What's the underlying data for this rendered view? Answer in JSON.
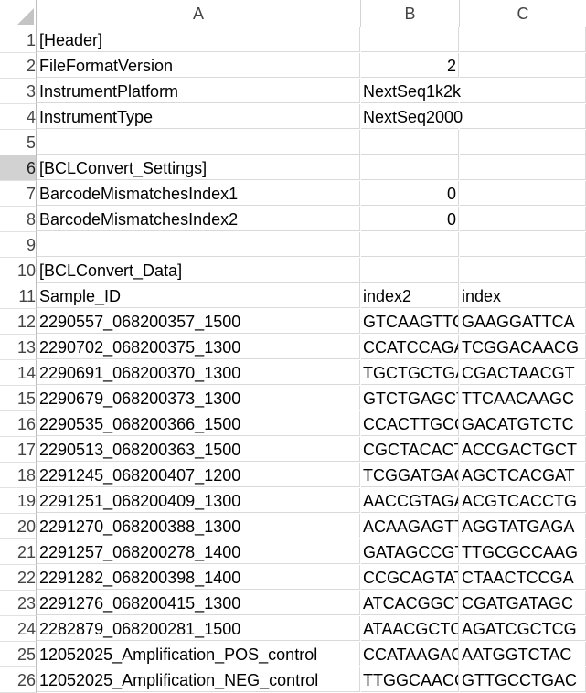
{
  "columns": [
    "A",
    "B",
    "C"
  ],
  "rows": [
    {
      "num": "1",
      "a": "[Header]",
      "b": "",
      "c": ""
    },
    {
      "num": "2",
      "a": "FileFormatVersion",
      "b": "2",
      "c": ""
    },
    {
      "num": "3",
      "a": "InstrumentPlatform",
      "b": "NextSeq1k2k",
      "c": ""
    },
    {
      "num": "4",
      "a": "InstrumentType",
      "b": "NextSeq2000",
      "c": ""
    },
    {
      "num": "5",
      "a": "",
      "b": "",
      "c": ""
    },
    {
      "num": "6",
      "a": "[BCLConvert_Settings]",
      "b": "",
      "c": ""
    },
    {
      "num": "7",
      "a": "BarcodeMismatchesIndex1",
      "b": "0",
      "c": ""
    },
    {
      "num": "8",
      "a": "BarcodeMismatchesIndex2",
      "b": "0",
      "c": ""
    },
    {
      "num": "9",
      "a": "",
      "b": "",
      "c": ""
    },
    {
      "num": "10",
      "a": "[BCLConvert_Data]",
      "b": "",
      "c": ""
    },
    {
      "num": "11",
      "a": "Sample_ID",
      "b": "index2",
      "c": "index"
    },
    {
      "num": "12",
      "a": "2290557_068200357_1500",
      "b": "GTCAAGTTCT",
      "c": "GAAGGATTCA"
    },
    {
      "num": "13",
      "a": "2290702_068200375_1300",
      "b": "CCATCCAGAT",
      "c": "TCGGACAACG"
    },
    {
      "num": "14",
      "a": "2290691_068200370_1300",
      "b": "TGCTGCTGAC",
      "c": "CGACTAACGT"
    },
    {
      "num": "15",
      "a": "2290679_068200373_1300",
      "b": "GTCTGAGCTT",
      "c": "TTCAACAAGC"
    },
    {
      "num": "16",
      "a": "2290535_068200366_1500",
      "b": "CCACTTGCCG",
      "c": "GACATGTCTC"
    },
    {
      "num": "17",
      "a": "2290513_068200363_1500",
      "b": "CGCTACACTA",
      "c": "ACCGACTGCT"
    },
    {
      "num": "18",
      "a": "2291245_068200407_1200",
      "b": "TCGGATGAGA",
      "c": "AGCTCACGAT"
    },
    {
      "num": "19",
      "a": "2291251_068200409_1300",
      "b": "AACCGTAGAC",
      "c": "ACGTCACCTG"
    },
    {
      "num": "20",
      "a": "2291270_068200388_1300",
      "b": "ACAAGAGTTA",
      "c": "AGGTATGAGA"
    },
    {
      "num": "21",
      "a": "2291257_068200278_1400",
      "b": "GATAGCCGTT",
      "c": "TTGCGCCAAG"
    },
    {
      "num": "22",
      "a": "2291282_068200398_1400",
      "b": "CCGCAGTATC",
      "c": "CTAACTCCGA"
    },
    {
      "num": "23",
      "a": "2291276_068200415_1300",
      "b": "ATCACGGCTC",
      "c": "CGATGATAGC"
    },
    {
      "num": "24",
      "a": "2282879_068200281_1500",
      "b": "ATAACGCTCA",
      "c": "AGATCGCTCG"
    },
    {
      "num": "25",
      "a": "12052025_Amplification_POS_control",
      "b": "CCATAAGACA",
      "c": "AATGGTCTAC"
    },
    {
      "num": "26",
      "a": "12052025_Amplification_NEG_control",
      "b": "TTGGCAACCG",
      "c": "GTTGCCTGAC"
    }
  ],
  "selected_row": "6",
  "colors": {
    "header_border": "#bdbdbd",
    "grid_line": "#d9d9d9",
    "selected_row_header": "#d2d2d2",
    "corner_triangle": "#c4c4c4"
  }
}
